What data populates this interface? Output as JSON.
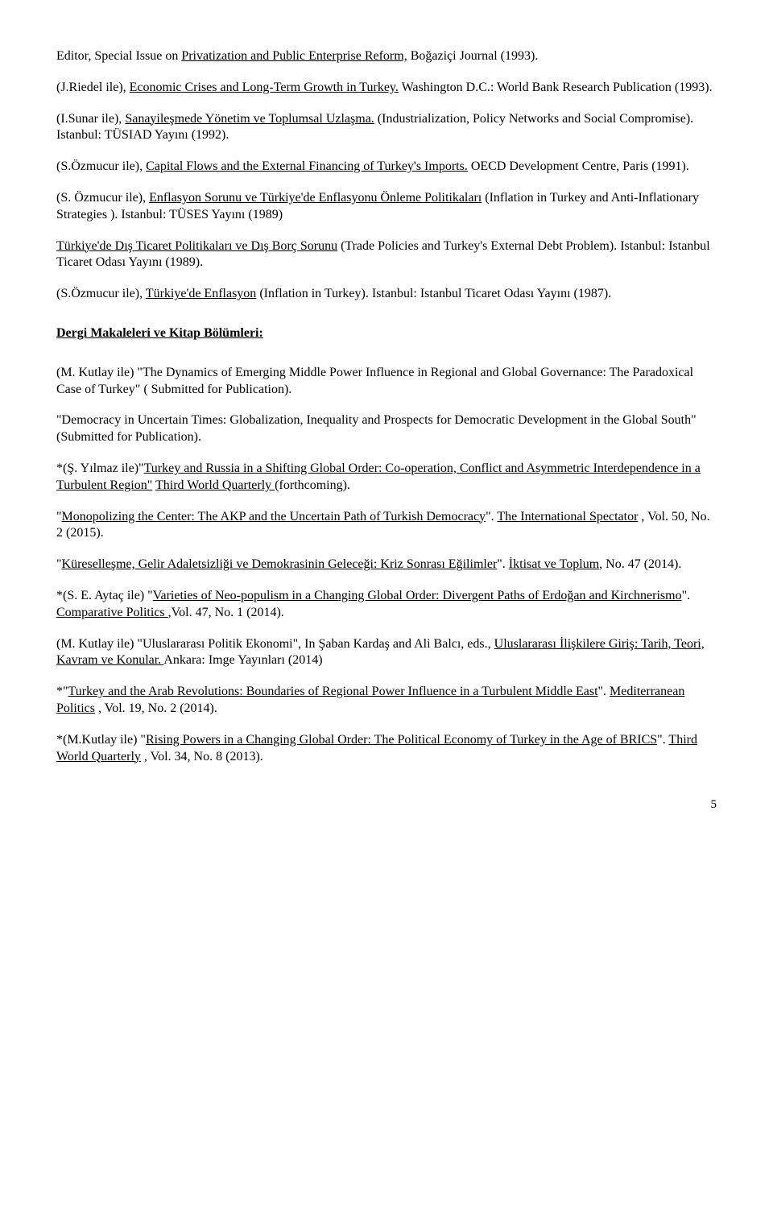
{
  "paragraphs": [
    {
      "segments": [
        {
          "text": "Editor, Special Issue on "
        },
        {
          "text": "Privatization and Public Enterprise Reform,",
          "u": true
        },
        {
          "text": " Boğaziçi Journal (1993)."
        }
      ]
    },
    {
      "segments": [
        {
          "text": "(J.Riedel ile), "
        },
        {
          "text": "Economic Crises and Long-Term Growth in Turkey.",
          "u": true
        },
        {
          "text": " Washington D.C.: World Bank Research Publication (1993)."
        }
      ]
    },
    {
      "segments": [
        {
          "text": "(I.Sunar ile), "
        },
        {
          "text": "Sanayileşmede Yönetim ve Toplumsal Uzlaşma.",
          "u": true
        },
        {
          "text": " (Industrialization, Policy Networks and Social Compromise). Istanbul: TÜSIAD Yayını (1992)."
        }
      ]
    },
    {
      "segments": [
        {
          "text": "(S.Özmucur ile), "
        },
        {
          "text": "Capital Flows and the External Financing of Turkey's Imports.",
          "u": true
        },
        {
          "text": " OECD Development Centre, Paris (1991)."
        }
      ]
    },
    {
      "segments": [
        {
          "text": "(S. Özmucur ile),  "
        },
        {
          "text": "Enflasyon Sorunu ve Türkiye'de Enflasyonu Önleme Politikaları",
          "u": true
        },
        {
          "text": " (Inflation in Turkey and Anti-Inflationary Strategies ). Istanbul: TÜSES Yayını (1989)"
        }
      ]
    },
    {
      "segments": [
        {
          "text": "Türkiye'de Dış Ticaret Politikaları ve Dış Borç Sorunu",
          "u": true
        },
        {
          "text": " (Trade Policies and Turkey's External Debt Problem). Istanbul: Istanbul Ticaret Odası Yayını (1989)."
        }
      ]
    },
    {
      "segments": [
        {
          "text": "(S.Özmucur ile), "
        },
        {
          "text": "Türkiye'de Enflasyon",
          "u": true
        },
        {
          "text": " (Inflation in Turkey). Istanbul: Istanbul Ticaret Odası Yayını (1987)."
        }
      ]
    }
  ],
  "section_heading": "Dergi Makaleleri ve Kitap Bölümleri:",
  "paragraphs2": [
    {
      "segments": [
        {
          "text": "(M. Kutlay ile) \"The Dynamics of Emerging Middle Power Influence in Regional and Global Governance: The Paradoxical Case of Turkey\" ( Submitted for Publication)."
        }
      ]
    },
    {
      "segments": [
        {
          "text": "\"Democracy in Uncertain Times: Globalization, Inequality and Prospects for Democratic Development in the Global South\" (Submitted for Publication)."
        }
      ]
    },
    {
      "segments": [
        {
          "text": "*(Ş. Yılmaz ile)\""
        },
        {
          "text": "Turkey and Russia in a Shifting Global Order: Co-operation, Conflict and Asymmetric Interdependence in a Turbulent Region\"",
          "u": true
        },
        {
          "text": " "
        },
        {
          "text": "Third World Quarterly ",
          "u": true
        },
        {
          "text": "(forthcoming)."
        }
      ]
    },
    {
      "segments": [
        {
          "text": "\""
        },
        {
          "text": "Monopolizing the Center: The AKP and the Uncertain Path of Turkish Democracy",
          "u": true
        },
        {
          "text": "\". "
        },
        {
          "text": "The International Spectator",
          "u": true
        },
        {
          "text": " , Vol. 50, No. 2 (2015)."
        }
      ]
    },
    {
      "segments": [
        {
          "text": "\""
        },
        {
          "text": "Küreselleşme, Gelir Adaletsizliği ve Demokrasinin Geleceği: Kriz Sonrası Eğilimler",
          "u": true
        },
        {
          "text": "\". "
        },
        {
          "text": "İktisat ve Toplum",
          "u": true
        },
        {
          "text": ", No. 47 (2014)."
        }
      ]
    },
    {
      "segments": [
        {
          "text": "*(S. E. Aytaç ile) \""
        },
        {
          "text": "Varieties of Neo-populism in a Changing Global Order: Divergent Paths of Erdoğan and Kirchnerismo",
          "u": true
        },
        {
          "text": "\"."
        },
        {
          "text": " Comparative Politics ",
          "u": true
        },
        {
          "text": " ,Vol. 47, No. 1 (2014)."
        }
      ]
    },
    {
      "segments": [
        {
          "text": "(M. Kutlay ile) \"Uluslararası Politik Ekonomi\", In Şaban Kardaş and Ali Balcı, eds., "
        },
        {
          "text": "Uluslararası İlişkilere Giriş: Tarih, Teori, Kavram ve Konular. ",
          "u": true
        },
        {
          "text": "Ankara: Imge Yayınları (2014)"
        }
      ]
    },
    {
      "segments": [
        {
          "text": "*\""
        },
        {
          "text": "Turkey and the Arab Revolutions: Boundaries of Regional Power Influence in a Turbulent Middle East",
          "u": true
        },
        {
          "text": "\". "
        },
        {
          "text": "Mediterranean Politics",
          "u": true
        },
        {
          "text": " , Vol. 19, No. 2 (2014)."
        }
      ]
    },
    {
      "segments": [
        {
          "text": "*(M.Kutlay ile) \""
        },
        {
          "text": "Rising Powers in a Changing Global Order: The Political Economy of Turkey in the Age of BRICS",
          "u": true
        },
        {
          "text": "\". "
        },
        {
          "text": "Third World Quarterly",
          "u": true
        },
        {
          "text": " , Vol. 34, No. 8 (2013)."
        }
      ]
    }
  ],
  "page_number": "5"
}
